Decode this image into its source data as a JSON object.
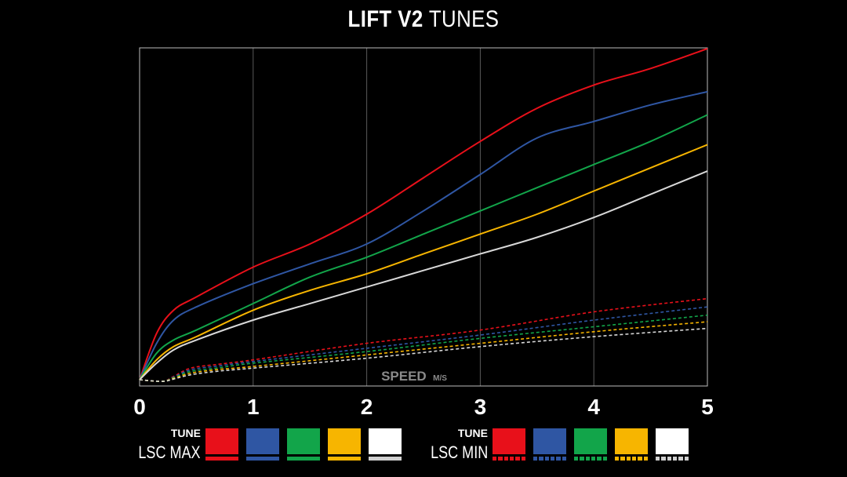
{
  "title": {
    "bold": "LIFT V2",
    "light": "TUNES"
  },
  "chart_data": {
    "type": "line",
    "xlabel": "SPEED",
    "xlabel_unit": "M/S",
    "xlim": [
      0,
      5
    ],
    "x_ticks": [
      "0",
      "1",
      "2",
      "3",
      "4",
      "5"
    ],
    "grid": "vertical",
    "ylim": [
      0,
      100
    ],
    "series": [
      {
        "name": "",
        "group": "LSC MAX",
        "color": "#e8101a",
        "dashed": false,
        "x": [
          0,
          0.15,
          0.3,
          0.5,
          1.0,
          1.5,
          2.0,
          2.5,
          3.0,
          3.5,
          4.0,
          4.5,
          5.0
        ],
        "y": [
          0,
          14,
          21,
          25,
          34,
          41,
          50,
          61,
          72,
          82,
          89,
          94,
          100
        ]
      },
      {
        "name": "",
        "group": "LSC MAX",
        "color": "#2f56a3",
        "dashed": false,
        "x": [
          0,
          0.15,
          0.3,
          0.5,
          1.0,
          1.5,
          2.0,
          2.5,
          3.0,
          3.5,
          4.0,
          4.5,
          5.0
        ],
        "y": [
          0,
          11,
          18,
          22,
          29,
          35,
          41,
          51,
          62,
          73,
          78,
          83,
          87
        ]
      },
      {
        "name": "",
        "group": "LSC MAX",
        "color": "#12a54a",
        "dashed": false,
        "x": [
          0,
          0.15,
          0.3,
          0.5,
          1.0,
          1.5,
          2.0,
          2.5,
          3.0,
          3.5,
          4.0,
          4.5,
          5.0
        ],
        "y": [
          0,
          8,
          12,
          15,
          23,
          31,
          37,
          44,
          51,
          58,
          65,
          72,
          80
        ]
      },
      {
        "name": "",
        "group": "LSC MAX",
        "color": "#f7b500",
        "dashed": false,
        "x": [
          0,
          0.15,
          0.3,
          0.5,
          1.0,
          1.5,
          2.0,
          2.5,
          3.0,
          3.5,
          4.0,
          4.5,
          5.0
        ],
        "y": [
          0,
          6,
          10,
          13,
          21,
          27,
          32,
          38,
          44,
          50,
          57,
          64,
          71
        ]
      },
      {
        "name": "",
        "group": "LSC MAX",
        "color": "#d8d8d8",
        "dashed": false,
        "x": [
          0,
          0.15,
          0.3,
          0.5,
          1.0,
          1.5,
          2.0,
          2.5,
          3.0,
          3.5,
          4.0,
          4.5,
          5.0
        ],
        "y": [
          0,
          5,
          9,
          12,
          18,
          23,
          28,
          33,
          38,
          43,
          49,
          56,
          63
        ]
      },
      {
        "name": "",
        "group": "LSC MIN",
        "color": "#e8101a",
        "dashed": true,
        "x": [
          0,
          0.2,
          0.3,
          0.45,
          0.7,
          1.0,
          2.0,
          3.0,
          4.0,
          5.0
        ],
        "y": [
          0,
          -0.5,
          1,
          3.5,
          4.7,
          6,
          11,
          15,
          20.5,
          24.5
        ]
      },
      {
        "name": "",
        "group": "LSC MIN",
        "color": "#2f56a3",
        "dashed": true,
        "x": [
          0,
          0.2,
          0.3,
          0.45,
          0.7,
          1.0,
          2.0,
          3.0,
          4.0,
          5.0
        ],
        "y": [
          0,
          -0.5,
          0.8,
          3,
          4.2,
          5.5,
          9.5,
          13.5,
          18,
          22
        ]
      },
      {
        "name": "",
        "group": "LSC MIN",
        "color": "#12a54a",
        "dashed": true,
        "x": [
          0,
          0.2,
          0.3,
          0.45,
          0.7,
          1.0,
          2.0,
          3.0,
          4.0,
          5.0
        ],
        "y": [
          0,
          -0.5,
          0.6,
          2.5,
          3.6,
          5,
          8.5,
          12.5,
          16,
          19.5
        ]
      },
      {
        "name": "",
        "group": "LSC MIN",
        "color": "#f7b500",
        "dashed": true,
        "x": [
          0,
          0.2,
          0.3,
          0.45,
          0.7,
          1.0,
          2.0,
          3.0,
          4.0,
          5.0
        ],
        "y": [
          0,
          -0.5,
          0.4,
          2,
          3.1,
          4,
          7.5,
          11,
          14.5,
          17.5
        ]
      },
      {
        "name": "",
        "group": "LSC MIN",
        "color": "#d8d8d8",
        "dashed": true,
        "x": [
          0,
          0.2,
          0.3,
          0.45,
          0.7,
          1.0,
          2.0,
          3.0,
          4.0,
          5.0
        ],
        "y": [
          0,
          -0.5,
          0.2,
          1.5,
          2.6,
          3.5,
          6.5,
          10,
          13,
          15.5
        ]
      }
    ]
  },
  "legend": {
    "max": {
      "tune_label": "TUNE",
      "name": "LSC MAX",
      "colors": [
        "#e8101a",
        "#2f56a3",
        "#12a54a",
        "#f7b500",
        "#ffffff"
      ],
      "bar_colors": [
        "#e8101a",
        "#2f56a3",
        "#12a54a",
        "#f7b500",
        "#cfcfcf"
      ]
    },
    "min": {
      "tune_label": "TUNE",
      "name": "LSC MIN",
      "colors": [
        "#e8101a",
        "#2f56a3",
        "#12a54a",
        "#f7b500",
        "#ffffff"
      ],
      "bar_colors": [
        "#e8101a",
        "#2f56a3",
        "#12a54a",
        "#f7b500",
        "#cfcfcf"
      ]
    }
  }
}
